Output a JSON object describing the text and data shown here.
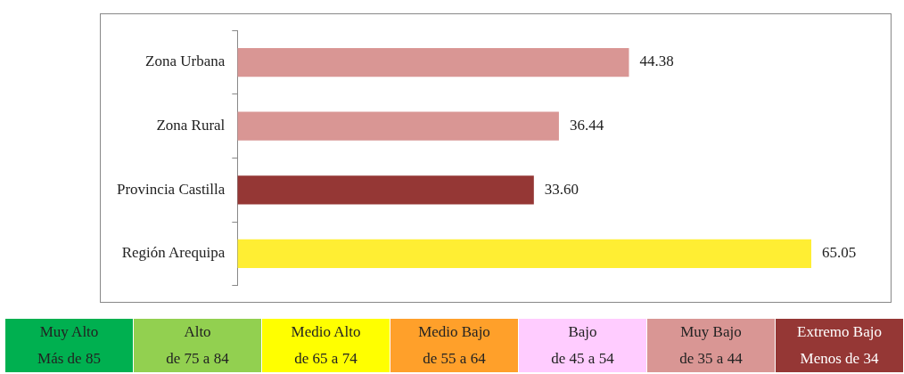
{
  "chart_data": [
    {
      "type": "bar",
      "orientation": "horizontal",
      "categories": [
        "Zona Urbana",
        "Zona Rural",
        "Provincia Castilla",
        "Región Arequipa"
      ],
      "values": [
        44.38,
        36.44,
        33.6,
        65.05
      ],
      "value_labels": [
        "44.38",
        "36.44",
        "33.60",
        "65.05"
      ],
      "colors": [
        "#d99694",
        "#d99694",
        "#953735",
        "#ffee33"
      ],
      "legend": false
    },
    {
      "type": "other",
      "categories": [
        "Muy Alto",
        "Alto",
        "Medio Alto",
        "Medio Bajo",
        "Bajo",
        "Muy Bajo",
        "Extremo Bajo"
      ],
      "annotations": [
        "Más de 85",
        "de 75 a 84",
        "de 65 a 74",
        "de 55 a 64",
        "de 45 a 54",
        "de 35 a 44",
        "Menos de 34"
      ],
      "colors": [
        "#00b050",
        "#92d050",
        "#ffff00",
        "#ffa02a",
        "#ffccff",
        "#d99694",
        "#953735"
      ]
    }
  ]
}
